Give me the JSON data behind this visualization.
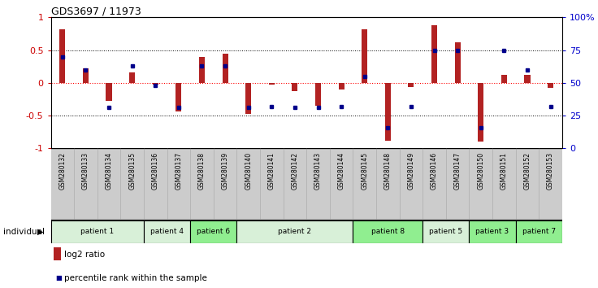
{
  "title": "GDS3697 / 11973",
  "samples": [
    "GSM280132",
    "GSM280133",
    "GSM280134",
    "GSM280135",
    "GSM280136",
    "GSM280137",
    "GSM280138",
    "GSM280139",
    "GSM280140",
    "GSM280141",
    "GSM280142",
    "GSM280143",
    "GSM280144",
    "GSM280145",
    "GSM280148",
    "GSM280149",
    "GSM280146",
    "GSM280147",
    "GSM280150",
    "GSM280151",
    "GSM280152",
    "GSM280153"
  ],
  "log2_ratio": [
    0.82,
    0.22,
    -0.28,
    0.16,
    -0.03,
    -0.44,
    0.39,
    0.44,
    -0.47,
    -0.03,
    -0.13,
    -0.35,
    -0.1,
    0.82,
    -0.88,
    -0.06,
    0.88,
    0.62,
    -0.9,
    0.12,
    0.12,
    -0.08
  ],
  "percentile_rank_raw": [
    70,
    60,
    31,
    63,
    48,
    31,
    63,
    63,
    31,
    32,
    31,
    31,
    32,
    55,
    16,
    32,
    75,
    75,
    16,
    75,
    60,
    32
  ],
  "patients": [
    {
      "label": "patient 1",
      "start": 0,
      "end": 4,
      "color": "#d8f0d8"
    },
    {
      "label": "patient 4",
      "start": 4,
      "end": 6,
      "color": "#d8f0d8"
    },
    {
      "label": "patient 6",
      "start": 6,
      "end": 8,
      "color": "#90ee90"
    },
    {
      "label": "patient 2",
      "start": 8,
      "end": 13,
      "color": "#d8f0d8"
    },
    {
      "label": "patient 8",
      "start": 13,
      "end": 16,
      "color": "#90ee90"
    },
    {
      "label": "patient 5",
      "start": 16,
      "end": 18,
      "color": "#d8f0d8"
    },
    {
      "label": "patient 3",
      "start": 18,
      "end": 20,
      "color": "#90ee90"
    },
    {
      "label": "patient 7",
      "start": 20,
      "end": 22,
      "color": "#90ee90"
    }
  ],
  "bar_color": "#b22222",
  "pct_color": "#00008b",
  "bg_color": "#ffffff",
  "tick_label_color_left": "#cc0000",
  "tick_label_color_right": "#0000cc",
  "ylim": [
    -1,
    1
  ],
  "yticks_left": [
    -1,
    -0.5,
    0,
    0.5,
    1
  ],
  "ytick_labels_left": [
    "-1",
    "-0.5",
    "0",
    "0.5",
    "1"
  ],
  "ytick_labels_right": [
    "0",
    "25",
    "50",
    "75",
    "100%"
  ],
  "bar_width": 0.25,
  "sample_label_gray": "#cccccc"
}
